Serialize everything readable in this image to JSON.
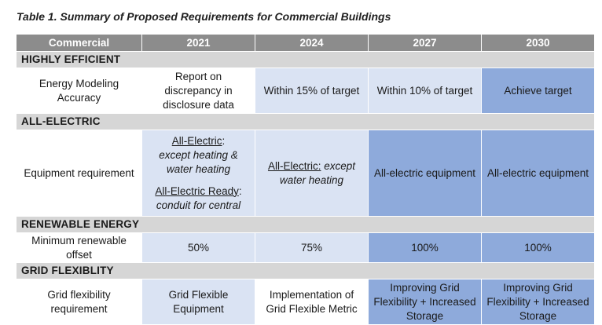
{
  "caption": "Table 1. Summary of Proposed Requirements for Commercial Buildings",
  "header": {
    "col0": "Commercial",
    "col1": "2021",
    "col2": "2024",
    "col3": "2027",
    "col4": "2030"
  },
  "sections": {
    "efficient": {
      "title": "HIGHLY EFFICIENT",
      "row_label": "Energy Modeling Accuracy",
      "c2021": "Report on discrepancy in disclosure data",
      "c2024": "Within 15% of target",
      "c2027": "Within 10% of target",
      "c2030": "Achieve target"
    },
    "electric": {
      "title": "ALL-ELECTRIC",
      "row_label": "Equipment requirement",
      "c2021_a_u": "All-Electric",
      "c2021_a_colon": ":",
      "c2021_a_i": "except heating & water heating",
      "c2021_b_u": "All-Electric Ready",
      "c2021_b_colon": ":",
      "c2021_b_i": "conduit for central",
      "c2024_u": "All-Electric:",
      "c2024_i1": "except",
      "c2024_i2": "water heating",
      "c2027": "All-electric equipment",
      "c2030": "All-electric equipment"
    },
    "renewable": {
      "title": "RENEWABLE ENERGY",
      "row_label": "Minimum renewable offset",
      "c2021": "50%",
      "c2024": "75%",
      "c2027": "100%",
      "c2030": "100%"
    },
    "grid": {
      "title": "GRID FLEXIBLITY",
      "row_label": "Grid flexibility requirement",
      "c2021": "Grid Flexible Equipment",
      "c2024": "Implementation of Grid Flexible Metric",
      "c2027": "Improving Grid Flexibility + Increased Storage",
      "c2030": "Improving Grid Flexibility + Increased Storage"
    }
  },
  "colors": {
    "header_bg": "#8c8c8c",
    "section_bg": "#d6d6d6",
    "light_blue": "#dae3f3",
    "mid_blue": "#8eaadb"
  }
}
